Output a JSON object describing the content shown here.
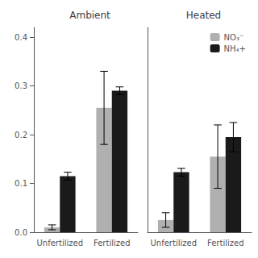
{
  "chart_data": [
    {
      "type": "bar",
      "title": "Ambient",
      "categories": [
        "Unfertilized",
        "Fertilized"
      ],
      "series": [
        {
          "name": "NO₃⁻",
          "color": "#b0b0b0",
          "values": [
            0.01,
            0.255
          ],
          "errors": [
            0.005,
            0.075
          ]
        },
        {
          "name": "NH₄+",
          "color": "#1a1a1a",
          "values": [
            0.115,
            0.29
          ],
          "errors": [
            0.008,
            0.008
          ]
        }
      ],
      "ylim": [
        0.0,
        0.42
      ],
      "yticks": [
        {
          "value": 0.0,
          "label": "0.0"
        },
        0.1,
        0.2,
        0.3,
        0.4
      ],
      "grid": false
    },
    {
      "type": "bar",
      "title": "Heated",
      "categories": [
        "Unfertilized",
        "Fertilized"
      ],
      "series": [
        {
          "name": "NO₃⁻",
          "color": "#b0b0b0",
          "values": [
            0.025,
            0.155
          ],
          "errors": [
            0.015,
            0.065
          ]
        },
        {
          "name": "NH₄+",
          "color": "#1a1a1a",
          "values": [
            0.123,
            0.195
          ],
          "errors": [
            0.008,
            0.03
          ]
        }
      ],
      "ylim": [
        0.0,
        0.42
      ],
      "yticks": [
        {
          "value": 0.0,
          "label": "0.0"
        },
        0.1,
        0.2,
        0.3,
        0.4
      ],
      "grid": false,
      "tick_labels": "x",
      "legend": "upper right"
    }
  ]
}
